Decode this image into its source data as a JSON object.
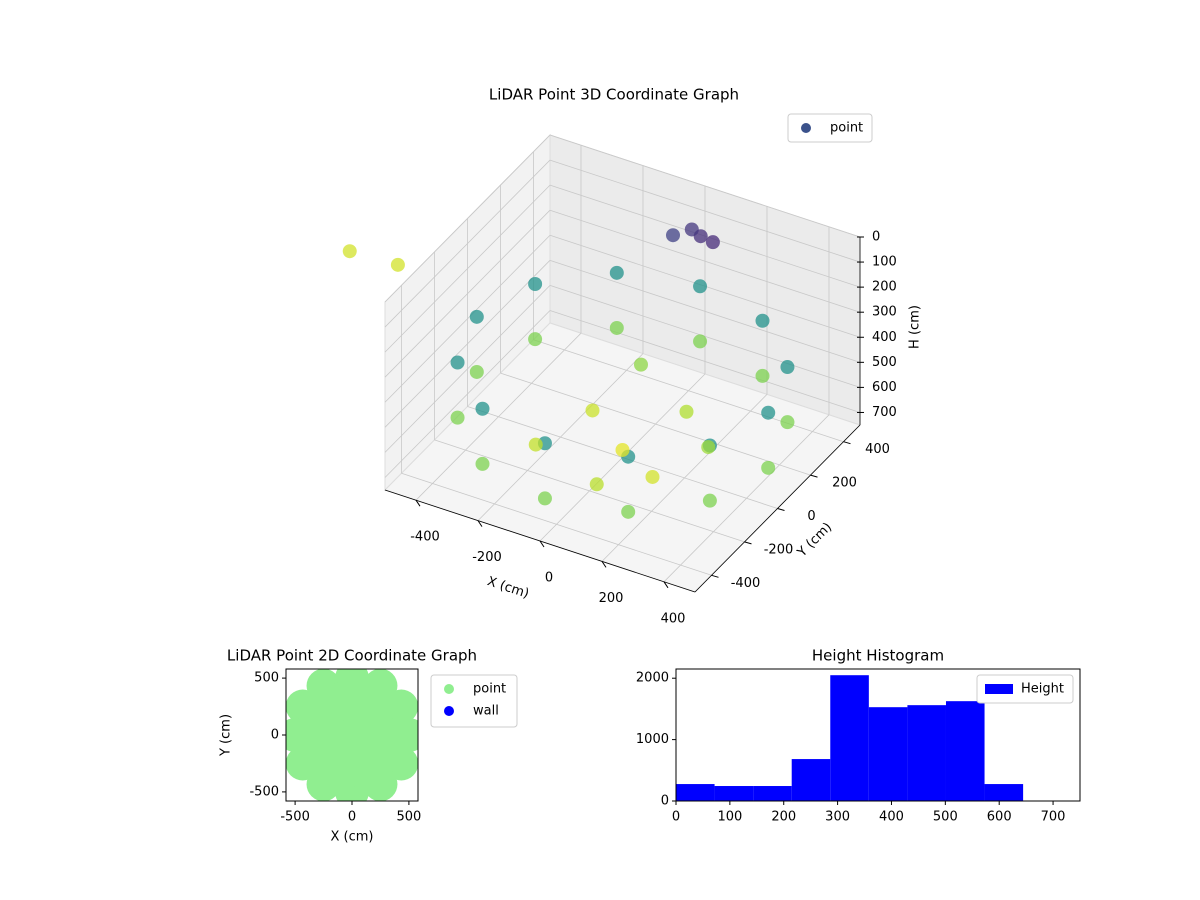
{
  "chart_data": [
    {
      "type": "scatter3d",
      "title": "LiDAR Point 3D Coordinate Graph",
      "xlabel": "X (cm)",
      "ylabel": "Y (cm)",
      "zlabel": "H (cm)",
      "xlim": [
        -500,
        500
      ],
      "ylim": [
        -500,
        500
      ],
      "zlim": [
        0,
        750
      ],
      "zinverted": true,
      "xticks": [
        -400,
        -200,
        0,
        200,
        400
      ],
      "yticks": [
        -400,
        -200,
        0,
        200,
        400
      ],
      "zticks": [
        0,
        100,
        200,
        300,
        400,
        500,
        600,
        700
      ],
      "colormap": "viridis",
      "grid": true,
      "legend": "upper right",
      "series": [
        {
          "name": "point",
          "color": "#3b528b",
          "x": [
            470,
            407,
            235,
            0,
            -235,
            -407,
            -470,
            -407,
            -235,
            0,
            235,
            407,
            470,
            407,
            235,
            0,
            -235,
            -407,
            -470,
            -407,
            -235,
            0,
            235,
            407,
            0,
            150,
            -150,
            100,
            -200,
            250,
            50,
            -100,
            50,
            0,
            -50,
            100,
            -1130,
            -980
          ],
          "y": [
            0,
            235,
            407,
            470,
            407,
            235,
            0,
            -235,
            -407,
            -470,
            -407,
            -235,
            0,
            235,
            407,
            470,
            407,
            235,
            0,
            -235,
            -407,
            -470,
            -407,
            -235,
            0,
            -100,
            100,
            200,
            -150,
            50,
            -250,
            300,
            380,
            420,
            400,
            360,
            470,
            480
          ],
          "values": [
            380,
            380,
            380,
            380,
            380,
            380,
            380,
            380,
            380,
            380,
            380,
            380,
            600,
            600,
            600,
            600,
            600,
            600,
            600,
            600,
            600,
            600,
            600,
            600,
            720,
            700,
            690,
            660,
            680,
            640,
            670,
            620,
            100,
            120,
            150,
            90,
            700,
            700
          ]
        }
      ]
    },
    {
      "type": "scatter",
      "title": "LiDAR Point 2D Coordinate Graph",
      "xlabel": "X (cm)",
      "ylabel": "Y (cm)",
      "xlim": [
        -580,
        580
      ],
      "ylim": [
        -580,
        580
      ],
      "xticks": [
        -500,
        0,
        500
      ],
      "yticks": [
        -500,
        0,
        500
      ],
      "legend": "outside right",
      "series": [
        {
          "name": "point",
          "color": "#90ee90",
          "x": [
            500,
            433,
            250,
            0,
            -250,
            -433,
            -500,
            -433,
            -250,
            0,
            250,
            433,
            319,
            233,
            85,
            -85,
            -233,
            -319,
            -319,
            -233,
            -85,
            85,
            233,
            319,
            160,
            80,
            -80,
            -160,
            -80,
            80,
            0
          ],
          "values": [
            0,
            250,
            433,
            500,
            433,
            250,
            0,
            -250,
            -433,
            -500,
            -433,
            -250,
            85,
            233,
            319,
            319,
            233,
            85,
            -85,
            -233,
            -319,
            -319,
            -233,
            -85,
            0,
            139,
            139,
            0,
            -139,
            -139,
            0
          ]
        },
        {
          "name": "wall",
          "color": "#0000ff",
          "x": [],
          "values": []
        }
      ]
    },
    {
      "type": "histogram",
      "title": "Height Histogram",
      "bins": [
        0,
        71.6,
        143.2,
        214.8,
        286.4,
        358,
        429.6,
        501.2,
        572.8,
        644.4
      ],
      "values": [
        276,
        244,
        244,
        683,
        2049,
        1528,
        1561,
        1626,
        276
      ],
      "series_name": "Height",
      "color": "#0000ff",
      "xlim": [
        0,
        750
      ],
      "ylim": [
        0,
        2150
      ],
      "xticks": [
        0,
        100,
        200,
        300,
        400,
        500,
        600,
        700
      ],
      "yticks": [
        0,
        1000,
        2000
      ],
      "legend": "upper right"
    }
  ]
}
